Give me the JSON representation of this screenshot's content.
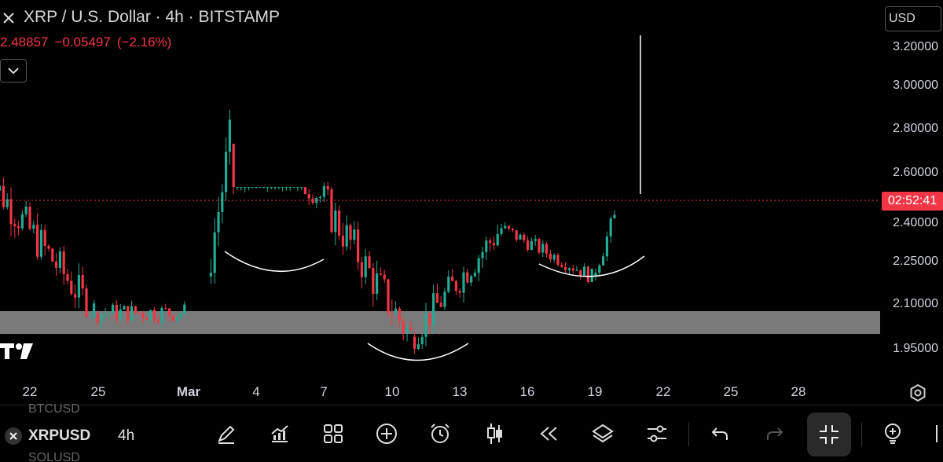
{
  "header": {
    "title": "XRP / U.S. Dollar · 4h · BITSTAMP",
    "price": "2.48857",
    "change": "−0.05497",
    "change_pct": "(−2.16%)"
  },
  "currency": "USD",
  "countdown": "02:52:41",
  "price_axis": [
    "3.20000",
    "3.00000",
    "2.80000",
    "2.60000",
    "2.40000",
    "2.25000",
    "2.10000",
    "1.95000"
  ],
  "time_axis": [
    {
      "label": "22",
      "month": false
    },
    {
      "label": "25",
      "month": false
    },
    {
      "label": "Mar",
      "month": true
    },
    {
      "label": "4",
      "month": false
    },
    {
      "label": "7",
      "month": false
    },
    {
      "label": "10",
      "month": false
    },
    {
      "label": "13",
      "month": false
    },
    {
      "label": "16",
      "month": false
    },
    {
      "label": "19",
      "month": false
    },
    {
      "label": "22",
      "month": false
    },
    {
      "label": "25",
      "month": false
    },
    {
      "label": "28",
      "month": false
    }
  ],
  "bottom": {
    "ghost_above": "BTCUSD",
    "ghost_below": "SOLUSD",
    "symbol": "XRPUSD",
    "interval": "4h"
  },
  "toolbar_icons": [
    "draw-icon",
    "indicators-icon",
    "layout-icon",
    "add-icon",
    "alert-icon",
    "candles-icon",
    "replay-icon",
    "layers-icon",
    "settings-sliders-icon",
    "undo-icon",
    "redo-icon",
    "fullscreen-exit-icon",
    "bulb-icon"
  ],
  "colors": {
    "up": "#22ab94",
    "down": "#f23645",
    "support_zone": "#7a7a7a",
    "annotation": "#ffffff"
  },
  "chart_data": {
    "type": "candlestick",
    "symbol": "XRPUSD",
    "interval": "4h",
    "annotations": [
      "horizontal support zone 2.05 – 2.10",
      "rounded bottom arcs under the Mar 4, Mar 11 and Mar 19 lows",
      "vertical line near Mar 21 spanning 2.51 to 3.25"
    ],
    "last_price_line": 2.48857,
    "support_zone": [
      2.05,
      2.1
    ],
    "segments": [
      {
        "from": "Feb 20",
        "to": "Feb 25",
        "open": 2.7,
        "close": 2.1,
        "low": 2.08,
        "high": 2.73
      },
      {
        "from": "Feb 25",
        "to": "Mar 1",
        "open": 2.1,
        "close": 2.1,
        "low": 1.97,
        "high": 2.3
      },
      {
        "from": "Mar 2",
        "to": "Mar 3",
        "open": 2.25,
        "close": 2.8,
        "low": 2.22,
        "high": 3.03
      },
      {
        "from": "Mar 3",
        "to": "Mar 7",
        "open": 2.8,
        "close": 2.58,
        "low": 2.25,
        "high": 2.62
      },
      {
        "from": "Mar 7",
        "to": "Mar 11",
        "open": 2.58,
        "close": 2.0,
        "low": 1.93,
        "high": 2.64
      },
      {
        "from": "Mar 11",
        "to": "Mar 15",
        "open": 2.0,
        "close": 2.45,
        "low": 1.93,
        "high": 2.48
      },
      {
        "from": "Mar 15",
        "to": "Mar 19",
        "open": 2.45,
        "close": 2.25,
        "low": 2.22,
        "high": 2.48
      },
      {
        "from": "Mar 19",
        "to": "Mar 20",
        "open": 2.25,
        "close": 2.49,
        "low": 2.23,
        "high": 2.59
      }
    ]
  }
}
